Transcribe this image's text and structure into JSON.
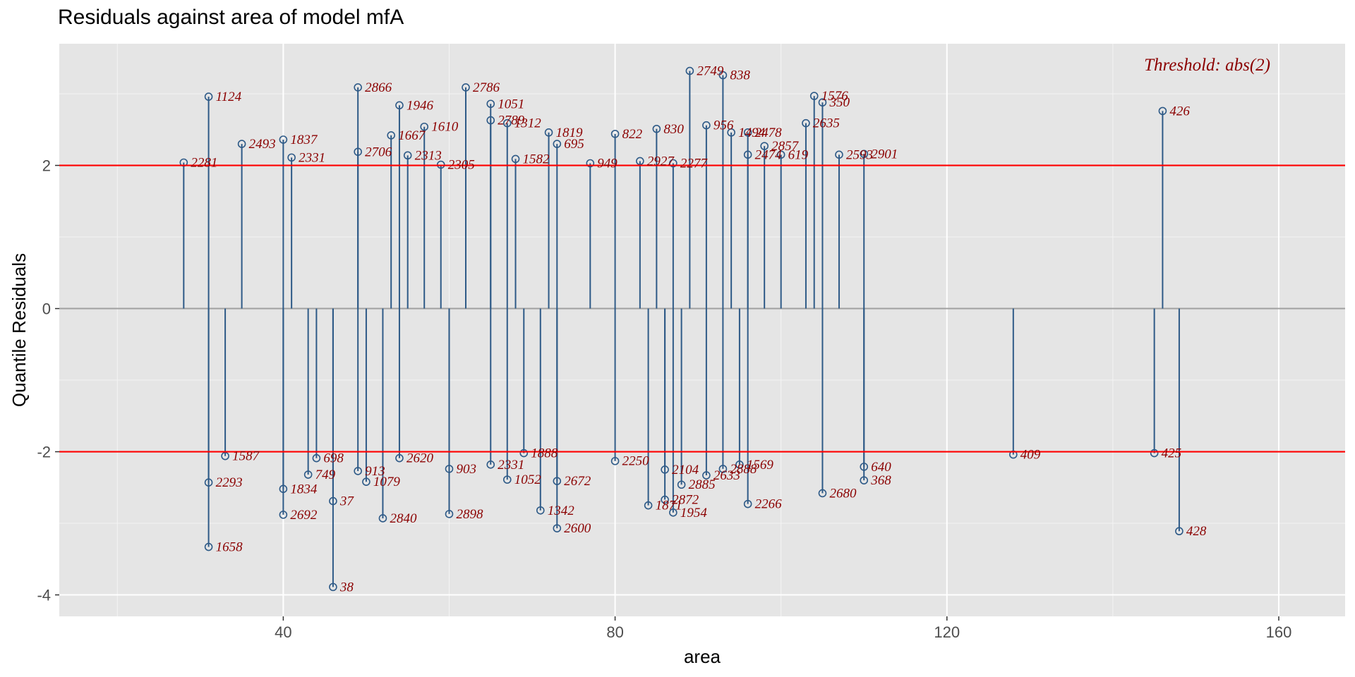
{
  "chart_data": {
    "type": "scatter",
    "title": "Residuals against area of model mfA",
    "xlabel": "area",
    "ylabel": "Quantile Residuals",
    "xlim": [
      13,
      168
    ],
    "ylim": [
      -4.3,
      3.7
    ],
    "x_ticks": [
      40,
      80,
      120,
      160
    ],
    "y_ticks": [
      -4,
      -2,
      0,
      2
    ],
    "grid": true,
    "threshold": 2,
    "threshold_label": "Threshold: abs(2)",
    "threshold_color": "#ff0000",
    "zero_line_color": "#a0a0a0",
    "point_color": "#2e5a87",
    "label_color": "#8b0000",
    "panel_background": "#e5e5e5",
    "flagged_points": [
      {
        "x": 31,
        "y": 2.96,
        "label": "1124"
      },
      {
        "x": 49,
        "y": 3.09,
        "label": "2866"
      },
      {
        "x": 54,
        "y": 2.84,
        "label": "1946"
      },
      {
        "x": 57,
        "y": 2.54,
        "label": "1610"
      },
      {
        "x": 62,
        "y": 3.09,
        "label": "2786"
      },
      {
        "x": 65,
        "y": 2.86,
        "label": "1051"
      },
      {
        "x": 65,
        "y": 2.63,
        "label": "2789"
      },
      {
        "x": 67,
        "y": 2.59,
        "label": "1312"
      },
      {
        "x": 72,
        "y": 2.46,
        "label": "1819"
      },
      {
        "x": 80,
        "y": 2.44,
        "label": "822"
      },
      {
        "x": 85,
        "y": 2.51,
        "label": "830"
      },
      {
        "x": 89,
        "y": 3.32,
        "label": "2749"
      },
      {
        "x": 93,
        "y": 3.26,
        "label": "838"
      },
      {
        "x": 91,
        "y": 2.56,
        "label": "956"
      },
      {
        "x": 94,
        "y": 2.46,
        "label": "1494"
      },
      {
        "x": 96,
        "y": 2.46,
        "label": "2478"
      },
      {
        "x": 103,
        "y": 2.59,
        "label": "2635"
      },
      {
        "x": 104,
        "y": 2.97,
        "label": "1576"
      },
      {
        "x": 105,
        "y": 2.88,
        "label": "350"
      },
      {
        "x": 53,
        "y": 2.42,
        "label": "1667"
      },
      {
        "x": 40,
        "y": 2.36,
        "label": "1837"
      },
      {
        "x": 35,
        "y": 2.3,
        "label": "2493"
      },
      {
        "x": 28,
        "y": 2.04,
        "label": "2281"
      },
      {
        "x": 41,
        "y": 2.11,
        "label": "2331"
      },
      {
        "x": 49,
        "y": 2.19,
        "label": "2706"
      },
      {
        "x": 55,
        "y": 2.14,
        "label": "2313"
      },
      {
        "x": 59,
        "y": 2.01,
        "label": "2305"
      },
      {
        "x": 68,
        "y": 2.09,
        "label": "1582"
      },
      {
        "x": 73,
        "y": 2.3,
        "label": "695"
      },
      {
        "x": 77,
        "y": 2.03,
        "label": "949"
      },
      {
        "x": 83,
        "y": 2.06,
        "label": "2927"
      },
      {
        "x": 87,
        "y": 2.03,
        "label": "2277"
      },
      {
        "x": 96,
        "y": 2.15,
        "label": "2474"
      },
      {
        "x": 98,
        "y": 2.27,
        "label": "2857"
      },
      {
        "x": 100,
        "y": 2.15,
        "label": "619"
      },
      {
        "x": 107,
        "y": 2.15,
        "label": "2593"
      },
      {
        "x": 110,
        "y": 2.16,
        "label": "2901"
      },
      {
        "x": 146,
        "y": 2.76,
        "label": "426"
      },
      {
        "x": 33,
        "y": -2.06,
        "label": "1587"
      },
      {
        "x": 31,
        "y": -2.43,
        "label": "2293"
      },
      {
        "x": 31,
        "y": -3.33,
        "label": "1658"
      },
      {
        "x": 43,
        "y": -2.32,
        "label": "749"
      },
      {
        "x": 44,
        "y": -2.09,
        "label": "698"
      },
      {
        "x": 40,
        "y": -2.52,
        "label": "1834"
      },
      {
        "x": 40,
        "y": -2.88,
        "label": "2692"
      },
      {
        "x": 46,
        "y": -2.69,
        "label": "37"
      },
      {
        "x": 46,
        "y": -3.89,
        "label": "38"
      },
      {
        "x": 49,
        "y": -2.27,
        "label": "913"
      },
      {
        "x": 50,
        "y": -2.42,
        "label": "1079"
      },
      {
        "x": 52,
        "y": -2.93,
        "label": "2840"
      },
      {
        "x": 54,
        "y": -2.09,
        "label": "2620"
      },
      {
        "x": 60,
        "y": -2.24,
        "label": "903"
      },
      {
        "x": 60,
        "y": -2.87,
        "label": "2898"
      },
      {
        "x": 65,
        "y": -2.18,
        "label": "2331"
      },
      {
        "x": 67,
        "y": -2.39,
        "label": "1052"
      },
      {
        "x": 69,
        "y": -2.02,
        "label": "1888"
      },
      {
        "x": 71,
        "y": -2.82,
        "label": "1342"
      },
      {
        "x": 73,
        "y": -3.07,
        "label": "2600"
      },
      {
        "x": 73,
        "y": -2.41,
        "label": "2672"
      },
      {
        "x": 80,
        "y": -2.13,
        "label": "2250"
      },
      {
        "x": 84,
        "y": -2.75,
        "label": "1871"
      },
      {
        "x": 86,
        "y": -2.67,
        "label": "2872"
      },
      {
        "x": 86,
        "y": -2.25,
        "label": "2104"
      },
      {
        "x": 87,
        "y": -2.85,
        "label": "1954"
      },
      {
        "x": 88,
        "y": -2.46,
        "label": "2885"
      },
      {
        "x": 91,
        "y": -2.33,
        "label": "2633"
      },
      {
        "x": 93,
        "y": -2.24,
        "label": "2888"
      },
      {
        "x": 95,
        "y": -2.18,
        "label": "1569"
      },
      {
        "x": 96,
        "y": -2.73,
        "label": "2266"
      },
      {
        "x": 105,
        "y": -2.58,
        "label": "2680"
      },
      {
        "x": 110,
        "y": -2.21,
        "label": "640"
      },
      {
        "x": 110,
        "y": -2.4,
        "label": "368"
      },
      {
        "x": 128,
        "y": -2.04,
        "label": "409"
      },
      {
        "x": 145,
        "y": -2.02,
        "label": "425"
      },
      {
        "x": 148,
        "y": -3.11,
        "label": "428"
      }
    ]
  }
}
